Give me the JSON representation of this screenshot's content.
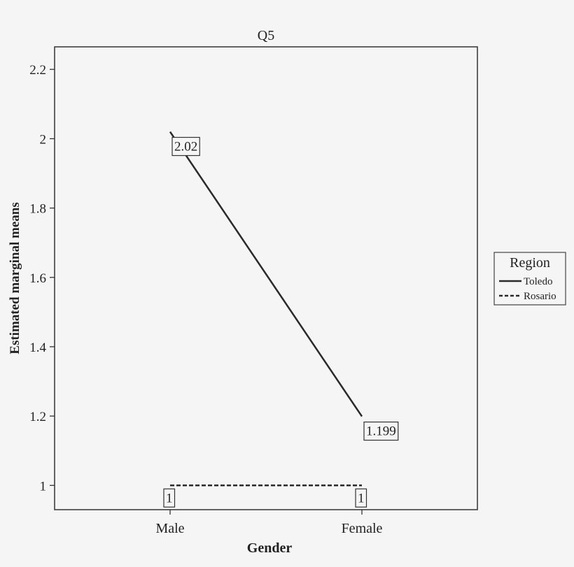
{
  "chart_data": {
    "type": "line",
    "title": "Q5",
    "xlabel": "Gender",
    "ylabel": "Estimated marginal means",
    "categories": [
      "Male",
      "Female"
    ],
    "yticks": [
      "1",
      "1.2",
      "1.4",
      "1.6",
      "1.8",
      "2",
      "2.2"
    ],
    "ylim": [
      0.93,
      2.265
    ],
    "legend": {
      "title": "Region",
      "placement": "right"
    },
    "series": [
      {
        "name": "Toledo",
        "line_style": "solid",
        "values": [
          2.02,
          1.199
        ],
        "labels": [
          "2.02",
          "1.199"
        ]
      },
      {
        "name": "Rosario",
        "line_style": "dashed",
        "values": [
          1,
          1
        ],
        "labels": [
          "1",
          "1"
        ]
      }
    ],
    "colors": {
      "line": "#2a2a2a",
      "axis": "#333333",
      "background": "#f5f5f5"
    }
  }
}
